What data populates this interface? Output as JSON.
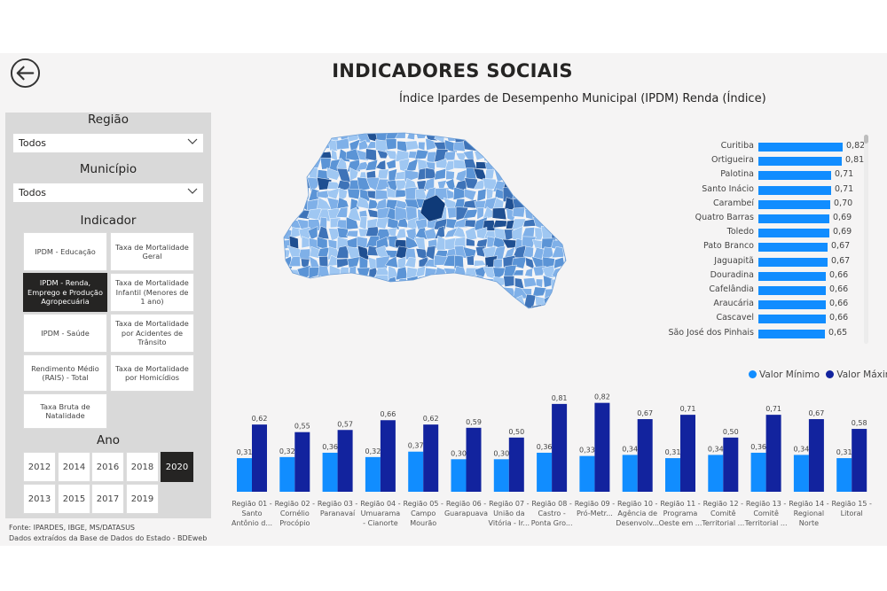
{
  "header": {
    "title": "INDICADORES SOCIAIS",
    "map_title": "Índice Ipardes de Desempenho Municipal (IPDM) Renda (Índice)"
  },
  "icons": {
    "back": "back-arrow-circle-icon",
    "dropdown": "chevron-down-icon"
  },
  "filters": {
    "regiao": {
      "label": "Região",
      "value": "Todos"
    },
    "municipio": {
      "label": "Município",
      "value": "Todos"
    },
    "indicador": {
      "label": "Indicador",
      "items": [
        "IPDM - Educação",
        "Taxa de Mortalidade Geral",
        "IPDM - Renda, Emprego e Produção Agropecuária",
        "Taxa de Mortalidade Infantil (Menores de 1 ano)",
        "IPDM - Saúde",
        "Taxa de Mortalidade por Acidentes de Trânsito",
        "Rendimento Médio (RAIS) - Total",
        "Taxa de Mortalidade por Homicídios",
        "Taxa Bruta de Natalidade"
      ],
      "selected": "IPDM - Renda, Emprego e Produção Agropecuária"
    },
    "ano": {
      "label": "Ano",
      "years": [
        "2012",
        "2014",
        "2016",
        "2018",
        "2020",
        "2013",
        "2015",
        "2017",
        "2019"
      ],
      "selected": "2020"
    }
  },
  "footer": {
    "source": "Fonte: IPARDES, IBGE, MS/DATASUS",
    "note": "Dados extraídos da Base de Dados do Estado - BDEweb"
  },
  "colors": {
    "accent": "#118dff",
    "dark_series": "#12239e",
    "active_button": "#252423",
    "map_palette": [
      "#9fc7f2",
      "#7fb0e8",
      "#5b94d6",
      "#3e73b8",
      "#1f4f91",
      "#0f3a78"
    ]
  },
  "ranking": {
    "items": [
      {
        "name": "Curitiba",
        "value": 0.82,
        "label": "0,82"
      },
      {
        "name": "Ortigueira",
        "value": 0.81,
        "label": "0,81"
      },
      {
        "name": "Palotina",
        "value": 0.71,
        "label": "0,71"
      },
      {
        "name": "Santo Inácio",
        "value": 0.71,
        "label": "0,71"
      },
      {
        "name": "Carambeí",
        "value": 0.7,
        "label": "0,70"
      },
      {
        "name": "Quatro Barras",
        "value": 0.69,
        "label": "0,69"
      },
      {
        "name": "Toledo",
        "value": 0.69,
        "label": "0,69"
      },
      {
        "name": "Pato Branco",
        "value": 0.67,
        "label": "0,67"
      },
      {
        "name": "Jaguapitã",
        "value": 0.67,
        "label": "0,67"
      },
      {
        "name": "Douradina",
        "value": 0.66,
        "label": "0,66"
      },
      {
        "name": "Cafelândia",
        "value": 0.66,
        "label": "0,66"
      },
      {
        "name": "Araucária",
        "value": 0.66,
        "label": "0,66"
      },
      {
        "name": "Cascavel",
        "value": 0.66,
        "label": "0,66"
      },
      {
        "name": "São José dos Pinhais",
        "value": 0.65,
        "label": "0,65"
      }
    ]
  },
  "chart_data": {
    "type": "bar",
    "legend": [
      "Valor Mínimo",
      "Valor Máximo"
    ],
    "legend_position": "top-right",
    "categories": [
      "Região 01 - Santo Antônio d...",
      "Região 02 - Cornélio Procópio",
      "Região 03 - Paranavaí",
      "Região 04 - Umuarama - Cianorte",
      "Região 05 - Campo Mourão",
      "Região 06 - Guarapuava",
      "Região 07 - União da Vitória - Ir...",
      "Região 08 - Castro - Ponta Gro...",
      "Região 09 - Pró-Metr...",
      "Região 10 - Agência de Desenvolv...",
      "Região 11 - Programa Oeste em ...",
      "Região 12 - Comitê Territorial ...",
      "Região 13 - Comitê Territorial ...",
      "Região 14 - Regional Norte",
      "Região 15 - Litoral"
    ],
    "category_lines": [
      [
        "Região 01 -",
        "Santo",
        "Antônio d..."
      ],
      [
        "Região 02 -",
        "Cornélio",
        "Procópio"
      ],
      [
        "Região 03 -",
        "Paranavaí"
      ],
      [
        "Região 04 -",
        "Umuarama",
        "- Cianorte"
      ],
      [
        "Região 05 -",
        "Campo",
        "Mourão"
      ],
      [
        "Região 06 -",
        "Guarapuava"
      ],
      [
        "Região 07 -",
        "União da",
        "Vitória - Ir..."
      ],
      [
        "Região 08 -",
        "Castro -",
        "Ponta Gro..."
      ],
      [
        "Região 09 -",
        "Pró-Metr..."
      ],
      [
        "Região 10 -",
        "Agência de",
        "Desenvolv..."
      ],
      [
        "Região 11 -",
        "Programa",
        "Oeste em ..."
      ],
      [
        "Região 12 -",
        "Comitê",
        "Territorial ..."
      ],
      [
        "Região 13 -",
        "Comitê",
        "Territorial ..."
      ],
      [
        "Região 14 -",
        "Regional",
        "Norte"
      ],
      [
        "Região 15 -",
        "Litoral"
      ]
    ],
    "series": [
      {
        "name": "Valor Mínimo",
        "color": "#118dff",
        "values": [
          0.31,
          0.32,
          0.36,
          0.32,
          0.37,
          0.3,
          0.3,
          0.36,
          0.33,
          0.34,
          0.31,
          0.34,
          0.36,
          0.34,
          0.31
        ],
        "labels": [
          "0,31",
          "0,32",
          "0,36",
          "0,32",
          "0,37",
          "0,30",
          "0,30",
          "0,36",
          "0,33",
          "0,34",
          "0,31",
          "0,34",
          "0,36",
          "0,34",
          "0,31"
        ]
      },
      {
        "name": "Valor Máximo",
        "color": "#12239e",
        "values": [
          0.62,
          0.55,
          0.57,
          0.66,
          0.62,
          0.59,
          0.5,
          0.81,
          0.82,
          0.67,
          0.71,
          0.5,
          0.71,
          0.67,
          0.58
        ],
        "labels": [
          "0,62",
          "0,55",
          "0,57",
          "0,66",
          "0,62",
          "0,59",
          "0,50",
          "0,81",
          "0,82",
          "0,67",
          "0,71",
          "0,50",
          "0,71",
          "0,67",
          "0,58"
        ]
      }
    ],
    "ylim": [
      0,
      0.85
    ]
  }
}
